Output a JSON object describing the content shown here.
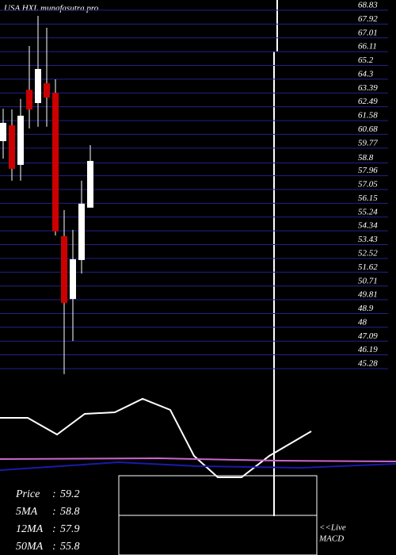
{
  "chart_data": {
    "type": "candlestick",
    "title": "USA HXL munafasutra.pro",
    "categories": [
      null,
      null,
      null,
      null,
      null,
      null,
      null,
      null,
      null,
      null,
      null
    ],
    "open": [
      60.23,
      61.27,
      58.67,
      63.6,
      62.73,
      64.03,
      63.4,
      53.98,
      49.86,
      52.42,
      55.86
    ],
    "high": [
      62.36,
      62.31,
      63.0,
      66.48,
      68.46,
      67.68,
      64.29,
      55.7,
      54.4,
      57.63,
      59.97
    ],
    "low": [
      59.08,
      57.63,
      57.63,
      61.06,
      61.17,
      61.17,
      54.03,
      44.92,
      47.1,
      51.53,
      55.86
    ],
    "close": [
      61.43,
      58.41,
      61.9,
      62.31,
      64.97,
      63.09,
      54.3,
      49.6,
      52.47,
      56.12,
      58.93
    ],
    "up_color": "#ffffff",
    "down_color": "#cc0000",
    "ylim": [
      44.5,
      69.5
    ],
    "yticks": [
      68.83,
      67.92,
      67.01,
      66.11,
      65.2,
      64.3,
      63.39,
      62.49,
      61.58,
      60.68,
      59.77,
      58.8,
      57.96,
      57.05,
      56.15,
      55.24,
      54.34,
      53.43,
      52.52,
      51.62,
      50.71,
      49.81,
      48.9,
      48,
      47.09,
      46.19,
      45.28
    ],
    "grid": true,
    "info": [
      {
        "label": "Price",
        "value": 59.2
      },
      {
        "label": "5MA",
        "value": 58.8
      },
      {
        "label": "12MA",
        "value": 57.9
      },
      {
        "label": "50MA",
        "value": 55.8
      }
    ],
    "live_label": "<<Live",
    "macd_label": "MACD"
  }
}
